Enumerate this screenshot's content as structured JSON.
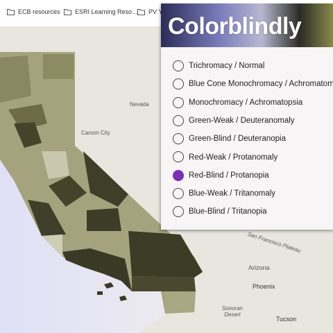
{
  "bookmarks": [
    "ECB resources",
    "ESRI Learning Reso…",
    "PV Y"
  ],
  "popup": {
    "title": "Colorblindly",
    "options": [
      "Trichromacy / Normal",
      "Blue Cone Monochromacy / Achromatom",
      "Monochromacy / Achromatopsia",
      "Green-Weak / Deuteranomaly",
      "Green-Blind / Deuteranopia",
      "Red-Weak / Protanomaly",
      "Red-Blind / Protanopia",
      "Blue-Weak / Tritanomaly",
      "Blue-Blind / Tritanopia"
    ],
    "selected": 6
  },
  "map_labels": [
    "Nevada",
    "Carson City",
    "San Francisco Plateau",
    "Arizona",
    "Phoenix",
    "Sonoran Desert",
    "Tucson"
  ]
}
